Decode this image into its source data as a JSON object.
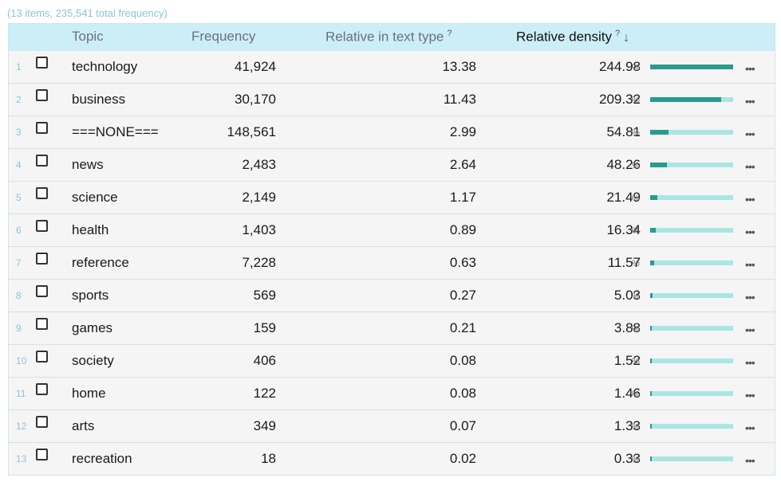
{
  "summary": "(13 items, 235,541 total frequency)",
  "columns": {
    "topic": "Topic",
    "frequency": "Frequency",
    "relative_text_type": "Relative in text type",
    "relative_density": "Relative density",
    "help_mark": "?",
    "sort_arrow": "↓"
  },
  "percent_symbol": "%",
  "more_glyph": "•••",
  "colors": {
    "bar_fill": "#2a9a8e",
    "bar_track": "#a9e6e3",
    "header_bg": "#cceef7",
    "summary_text": "#8fc3d8"
  },
  "rows": [
    {
      "num": "1",
      "topic": "technology",
      "freq": "41,924",
      "rel": "13.38",
      "density": "244.98",
      "bar": 1.0
    },
    {
      "num": "2",
      "topic": "business",
      "freq": "30,170",
      "rel": "11.43",
      "density": "209.32",
      "bar": 0.86
    },
    {
      "num": "3",
      "topic": "===NONE===",
      "freq": "148,561",
      "rel": "2.99",
      "density": "54.81",
      "bar": 0.22
    },
    {
      "num": "4",
      "topic": "news",
      "freq": "2,483",
      "rel": "2.64",
      "density": "48.26",
      "bar": 0.2
    },
    {
      "num": "5",
      "topic": "science",
      "freq": "2,149",
      "rel": "1.17",
      "density": "21.49",
      "bar": 0.09
    },
    {
      "num": "6",
      "topic": "health",
      "freq": "1,403",
      "rel": "0.89",
      "density": "16.34",
      "bar": 0.07
    },
    {
      "num": "7",
      "topic": "reference",
      "freq": "7,228",
      "rel": "0.63",
      "density": "11.57",
      "bar": 0.05
    },
    {
      "num": "8",
      "topic": "sports",
      "freq": "569",
      "rel": "0.27",
      "density": "5.03",
      "bar": 0.025
    },
    {
      "num": "9",
      "topic": "games",
      "freq": "159",
      "rel": "0.21",
      "density": "3.88",
      "bar": 0.02
    },
    {
      "num": "10",
      "topic": "society",
      "freq": "406",
      "rel": "0.08",
      "density": "1.52",
      "bar": 0.01
    },
    {
      "num": "11",
      "topic": "home",
      "freq": "122",
      "rel": "0.08",
      "density": "1.46",
      "bar": 0.01
    },
    {
      "num": "12",
      "topic": "arts",
      "freq": "349",
      "rel": "0.07",
      "density": "1.33",
      "bar": 0.01
    },
    {
      "num": "13",
      "topic": "recreation",
      "freq": "18",
      "rel": "0.02",
      "density": "0.33",
      "bar": 0.008
    }
  ]
}
